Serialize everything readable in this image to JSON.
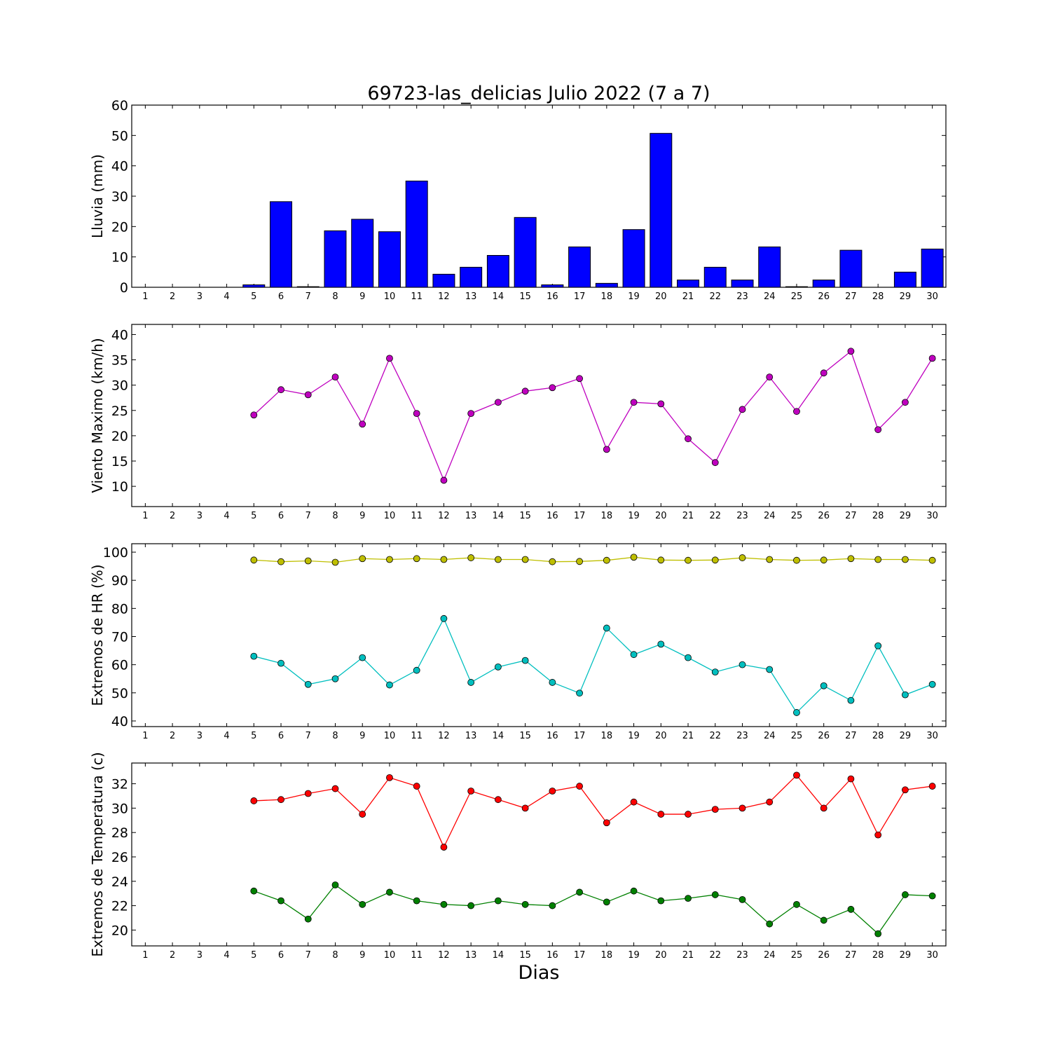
{
  "title": "69723-las_delicias Julio 2022  (7 a 7)",
  "xlabel": "Dias",
  "colors": {
    "rain": "#0000ff",
    "wind": "#bf00bf",
    "hr_max": "#bfbf00",
    "hr_min": "#00bfbf",
    "temp_max": "#ff0000",
    "temp_min": "#008000"
  },
  "chart_data": [
    {
      "type": "bar",
      "ylabel": "Lluvia (mm)",
      "ylim": [
        0,
        60
      ],
      "yticks": [
        0,
        10,
        20,
        30,
        40,
        50,
        60
      ],
      "categories": [
        1,
        2,
        3,
        4,
        5,
        6,
        7,
        8,
        9,
        10,
        11,
        12,
        13,
        14,
        15,
        16,
        17,
        18,
        19,
        20,
        21,
        22,
        23,
        24,
        25,
        26,
        27,
        28,
        29,
        30
      ],
      "values": [
        0,
        0,
        0,
        0,
        0.8,
        28.2,
        0.2,
        18.6,
        22.4,
        18.3,
        35.0,
        4.3,
        6.6,
        10.5,
        23.0,
        0.8,
        13.3,
        1.3,
        19.0,
        50.7,
        2.4,
        6.6,
        2.4,
        13.3,
        0.2,
        2.4,
        12.2,
        0,
        5.0,
        12.6
      ],
      "xlim": [
        0.5,
        30.5
      ]
    },
    {
      "type": "line",
      "ylabel": "Viento Maximo (km/h)",
      "ylim": [
        6,
        42
      ],
      "yticks": [
        10,
        15,
        20,
        25,
        30,
        35,
        40
      ],
      "x": [
        5,
        6,
        7,
        8,
        9,
        10,
        11,
        12,
        13,
        14,
        15,
        16,
        17,
        18,
        19,
        20,
        21,
        22,
        23,
        24,
        25,
        26,
        27,
        28,
        29,
        30
      ],
      "series": [
        {
          "values": [
            24.1,
            29.1,
            28.1,
            31.6,
            22.3,
            35.3,
            24.4,
            11.2,
            24.4,
            26.6,
            28.8,
            29.5,
            31.3,
            17.3,
            26.6,
            26.3,
            19.4,
            14.7,
            25.2,
            31.6,
            24.8,
            32.4,
            36.7,
            21.2,
            26.6,
            35.3
          ]
        }
      ],
      "xlim": [
        0.5,
        30.5
      ]
    },
    {
      "type": "line",
      "ylabel": "Extremos de HR (%)",
      "ylim": [
        38,
        103
      ],
      "yticks": [
        40,
        50,
        60,
        70,
        80,
        90,
        100
      ],
      "x": [
        5,
        6,
        7,
        8,
        9,
        10,
        11,
        12,
        13,
        14,
        15,
        16,
        17,
        18,
        19,
        20,
        21,
        22,
        23,
        24,
        25,
        26,
        27,
        28,
        29,
        30
      ],
      "series": [
        {
          "values": [
            97.2,
            96.6,
            96.9,
            96.4,
            97.7,
            97.4,
            97.7,
            97.4,
            98.0,
            97.4,
            97.4,
            96.6,
            96.7,
            97.1,
            98.2,
            97.2,
            97.1,
            97.2,
            98.0,
            97.4,
            97.1,
            97.2,
            97.7,
            97.4,
            97.4,
            97.1
          ]
        },
        {
          "values": [
            63.0,
            60.5,
            53.0,
            55.0,
            62.5,
            52.8,
            58.0,
            76.4,
            53.7,
            59.2,
            61.5,
            53.7,
            49.9,
            73.0,
            63.6,
            67.3,
            62.5,
            57.4,
            60.0,
            58.3,
            43.0,
            52.5,
            47.3,
            66.7,
            49.3,
            53.0
          ]
        }
      ],
      "xlim": [
        0.5,
        30.5
      ]
    },
    {
      "type": "line",
      "ylabel": "Extremos de Temperatura (c)",
      "ylim": [
        18.7,
        33.7
      ],
      "yticks": [
        20,
        22,
        24,
        26,
        28,
        30,
        32
      ],
      "x": [
        5,
        6,
        7,
        8,
        9,
        10,
        11,
        12,
        13,
        14,
        15,
        16,
        17,
        18,
        19,
        20,
        21,
        22,
        23,
        24,
        25,
        26,
        27,
        28,
        29,
        30
      ],
      "series": [
        {
          "values": [
            30.6,
            30.7,
            31.2,
            31.6,
            29.5,
            32.5,
            31.8,
            26.8,
            31.4,
            30.7,
            30.0,
            31.4,
            31.8,
            28.8,
            30.5,
            29.5,
            29.5,
            29.9,
            30.0,
            30.5,
            32.7,
            30.0,
            32.4,
            27.8,
            31.5,
            31.8
          ]
        },
        {
          "values": [
            23.2,
            22.4,
            20.9,
            23.7,
            22.1,
            23.1,
            22.4,
            22.1,
            22.0,
            22.4,
            22.1,
            22.0,
            23.1,
            22.3,
            23.2,
            22.4,
            22.6,
            22.9,
            22.5,
            20.5,
            22.1,
            20.8,
            21.7,
            19.7,
            22.9,
            22.8
          ]
        }
      ],
      "xlim": [
        0.5,
        30.5
      ]
    }
  ]
}
